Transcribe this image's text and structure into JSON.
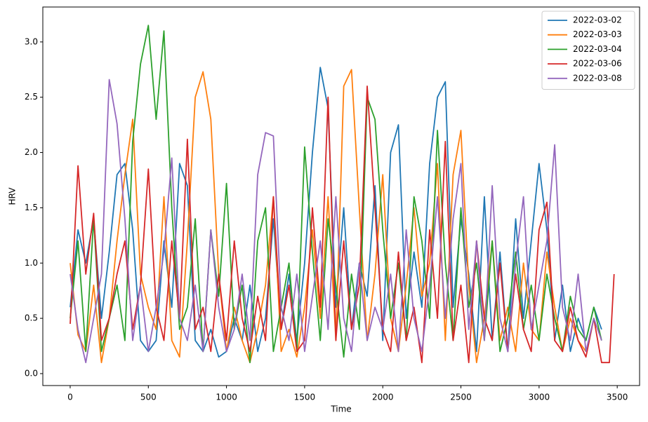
{
  "chart_data": {
    "type": "line",
    "xlabel": "Time",
    "ylabel": "HRV",
    "x": [
      0,
      50,
      100,
      150,
      200,
      250,
      300,
      350,
      400,
      450,
      500,
      550,
      600,
      650,
      700,
      750,
      800,
      850,
      900,
      950,
      1000,
      1050,
      1100,
      1150,
      1200,
      1250,
      1300,
      1350,
      1400,
      1450,
      1500,
      1550,
      1600,
      1650,
      1700,
      1750,
      1800,
      1850,
      1900,
      1950,
      2000,
      2050,
      2100,
      2150,
      2200,
      2250,
      2300,
      2350,
      2400,
      2450,
      2500,
      2550,
      2600,
      2650,
      2700,
      2750,
      2800,
      2850,
      2900,
      2950,
      3000,
      3050,
      3100,
      3150,
      3200,
      3250,
      3300,
      3350,
      3400,
      3450,
      3480
    ],
    "series": [
      {
        "name": "2022-03-02",
        "color": "#1f77b4",
        "values": [
          0.6,
          1.3,
          1.0,
          1.4,
          0.5,
          1.1,
          1.8,
          1.9,
          1.3,
          0.3,
          0.2,
          0.3,
          1.2,
          0.6,
          1.9,
          1.7,
          0.3,
          0.2,
          0.4,
          0.15,
          0.2,
          0.5,
          0.3,
          0.8,
          0.2,
          0.5,
          1.4,
          0.4,
          0.9,
          0.3,
          1.0,
          2.0,
          2.77,
          2.4,
          0.6,
          1.5,
          0.4,
          1.0,
          0.7,
          1.7,
          0.3,
          2.0,
          2.25,
          0.5,
          1.1,
          0.6,
          1.9,
          2.5,
          2.64,
          0.6,
          1.4,
          0.9,
          0.2,
          1.6,
          0.3,
          1.1,
          0.2,
          1.4,
          0.5,
          1.2,
          1.9,
          1.3,
          0.3,
          0.8,
          0.2,
          0.5,
          0.3,
          0.6,
          0.4,
          null,
          null
        ]
      },
      {
        "name": "2022-03-03",
        "color": "#ff7f0e",
        "values": [
          1.0,
          0.35,
          0.2,
          0.8,
          0.1,
          0.5,
          1.2,
          1.8,
          2.3,
          0.9,
          0.6,
          0.4,
          1.6,
          0.3,
          0.15,
          1.2,
          2.5,
          2.73,
          2.3,
          0.9,
          0.2,
          0.6,
          0.3,
          0.1,
          0.4,
          0.8,
          1.6,
          0.2,
          0.4,
          0.15,
          0.6,
          1.3,
          0.5,
          1.6,
          0.3,
          2.6,
          2.75,
          1.5,
          0.3,
          0.9,
          1.8,
          0.5,
          0.2,
          0.8,
          1.5,
          0.7,
          1.0,
          1.9,
          0.3,
          1.8,
          2.2,
          0.8,
          0.1,
          0.5,
          1.2,
          0.3,
          0.6,
          0.2,
          1.0,
          0.4,
          0.3,
          1.1,
          0.6,
          0.2,
          0.5,
          0.3,
          0.2,
          null,
          null,
          null,
          null
        ]
      },
      {
        "name": "2022-03-04",
        "color": "#2ca02c",
        "values": [
          0.5,
          1.2,
          0.2,
          1.4,
          0.2,
          0.5,
          0.8,
          0.3,
          2.1,
          2.8,
          3.15,
          2.3,
          3.1,
          1.5,
          0.4,
          0.6,
          1.4,
          0.2,
          1.3,
          0.7,
          1.72,
          0.4,
          0.8,
          0.1,
          1.2,
          1.5,
          0.2,
          0.6,
          1.0,
          0.2,
          2.05,
          1.1,
          0.3,
          1.4,
          0.8,
          0.15,
          0.9,
          0.4,
          2.5,
          2.3,
          1.3,
          0.5,
          1.0,
          0.3,
          1.6,
          1.2,
          0.5,
          2.2,
          1.0,
          0.3,
          1.5,
          0.6,
          1.0,
          0.3,
          1.2,
          0.2,
          0.5,
          1.1,
          0.4,
          0.8,
          0.3,
          0.9,
          0.5,
          0.2,
          0.7,
          0.4,
          0.3,
          0.6,
          0.3,
          null,
          null
        ]
      },
      {
        "name": "2022-03-06",
        "color": "#d62728",
        "values": [
          0.45,
          1.88,
          0.9,
          1.45,
          0.3,
          0.5,
          0.9,
          1.2,
          0.4,
          0.8,
          1.85,
          0.6,
          0.3,
          1.2,
          0.5,
          2.12,
          0.4,
          0.6,
          0.2,
          0.9,
          0.3,
          1.2,
          0.5,
          0.2,
          0.7,
          0.3,
          1.6,
          0.4,
          0.8,
          0.2,
          0.3,
          1.5,
          0.6,
          2.5,
          0.3,
          1.2,
          0.4,
          0.8,
          2.6,
          1.5,
          0.4,
          0.2,
          1.1,
          0.3,
          0.6,
          0.1,
          1.3,
          0.5,
          2.1,
          0.3,
          0.8,
          0.1,
          1.2,
          0.5,
          0.3,
          1.0,
          0.2,
          0.9,
          0.4,
          0.2,
          1.3,
          1.55,
          0.3,
          0.2,
          0.6,
          0.3,
          0.15,
          0.5,
          0.1,
          0.1,
          0.9
        ]
      },
      {
        "name": "2022-03-08",
        "color": "#9467bd",
        "values": [
          0.9,
          0.4,
          0.1,
          0.5,
          0.9,
          2.66,
          2.26,
          1.4,
          0.3,
          0.8,
          0.2,
          0.6,
          1.1,
          1.95,
          0.5,
          0.3,
          0.8,
          0.2,
          1.3,
          0.6,
          0.2,
          0.4,
          0.9,
          0.3,
          1.8,
          2.18,
          2.15,
          0.6,
          0.3,
          0.9,
          0.2,
          0.7,
          1.2,
          0.4,
          1.6,
          0.5,
          0.2,
          1.0,
          0.3,
          0.6,
          0.4,
          0.9,
          0.2,
          1.3,
          0.5,
          0.2,
          0.8,
          1.6,
          0.5,
          1.4,
          1.9,
          0.4,
          1.2,
          0.3,
          1.7,
          0.5,
          0.2,
          1.0,
          1.6,
          0.4,
          0.8,
          1.2,
          2.07,
          0.6,
          0.3,
          0.9,
          0.2,
          0.5,
          0.3,
          null,
          null
        ]
      }
    ],
    "xlim": [
      -175,
      3643
    ],
    "ylim": [
      -0.108,
      3.316
    ],
    "xticks": [
      0,
      500,
      1000,
      1500,
      2000,
      2500,
      3000,
      3500
    ],
    "yticks": [
      {
        "value": 0,
        "label": "0.0"
      },
      0.5,
      {
        "value": 1,
        "label": "1.0"
      },
      1.5,
      {
        "value": 2,
        "label": "2.0"
      },
      2.5,
      {
        "value": 3,
        "label": "3.0"
      }
    ],
    "legend": "upper right"
  }
}
